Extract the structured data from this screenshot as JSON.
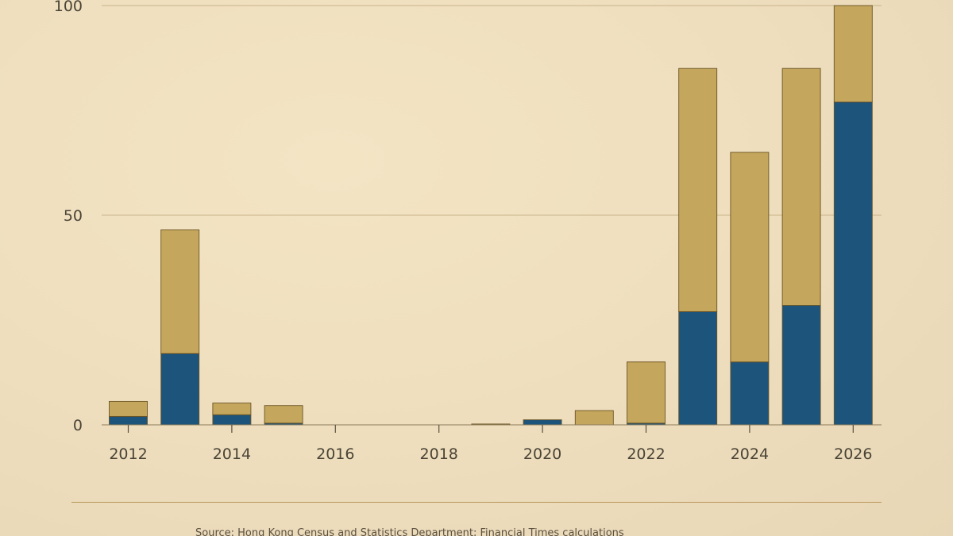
{
  "chart_data": {
    "type": "bar",
    "stacked": true,
    "title": "",
    "xlabel": "",
    "ylabel": "",
    "ylim": [
      0,
      100
    ],
    "yticks": [
      0,
      50,
      100
    ],
    "xticks": [
      "2012",
      "2014",
      "2016",
      "2018",
      "2020",
      "2022",
      "2024",
      "2026"
    ],
    "categories": [
      "2012",
      "2013",
      "2014",
      "2015",
      "2016",
      "2017",
      "2018",
      "2019",
      "2020",
      "2021",
      "2022",
      "2023",
      "2024",
      "2025",
      "2026"
    ],
    "series": [
      {
        "color": "#1c547c",
        "values": [
          2,
          17,
          2.4,
          0.4,
          0,
          0,
          0,
          0,
          1.2,
          0,
          0.4,
          27,
          15,
          28.5,
          77
        ]
      },
      {
        "color": "#c4a65c",
        "values": [
          3.6,
          29.5,
          2.8,
          4.2,
          0,
          0,
          0,
          0.2,
          0,
          3.4,
          14.6,
          58,
          50,
          56.5,
          23
        ]
      }
    ],
    "grid": true,
    "legend": "none"
  },
  "footer": {
    "source": "Source: Hong Kong Census and Statistics Department; Financial Times calculations"
  }
}
